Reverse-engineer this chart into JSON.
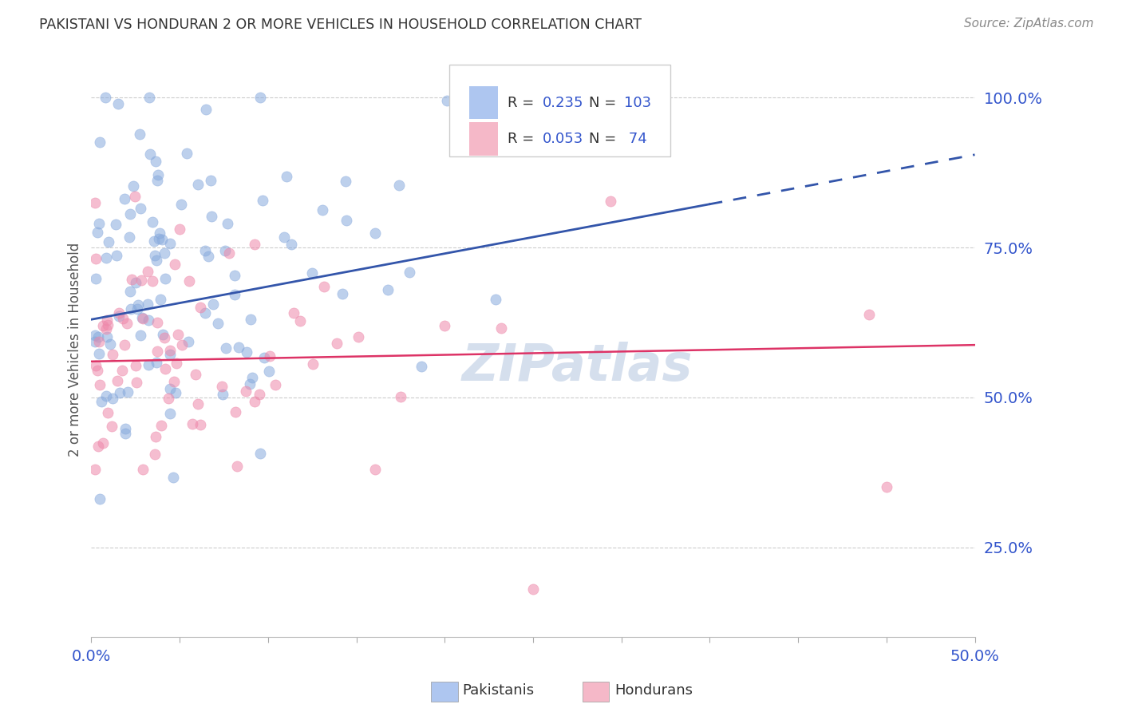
{
  "title": "PAKISTANI VS HONDURAN 2 OR MORE VEHICLES IN HOUSEHOLD CORRELATION CHART",
  "source": "Source: ZipAtlas.com",
  "ylabel": "2 or more Vehicles in Household",
  "xlim": [
    0.0,
    50.0
  ],
  "ylim": [
    10.0,
    106.0
  ],
  "ytick_vals": [
    25,
    50,
    75,
    100
  ],
  "ytick_labels": [
    "25.0%",
    "50.0%",
    "75.0%",
    "100.0%"
  ],
  "pakistani_color": "#88aadd",
  "honduran_color": "#ee88aa",
  "pakistani_trend_color": "#3355aa",
  "honduran_trend_color": "#dd3366",
  "pakistani_R": 0.235,
  "honduran_R": 0.053,
  "pakistani_N": 103,
  "honduran_N": 74,
  "legend_blue_fill": "#aec6f0",
  "legend_pink_fill": "#f5b8c8",
  "legend_number_color": "#3355cc",
  "axis_label_color": "#3355cc",
  "grid_color": "#cccccc",
  "title_color": "#333333",
  "source_color": "#888888",
  "watermark_color": "#c8d5e8",
  "pak_trend_intercept": 63.0,
  "pak_trend_slope": 0.55,
  "hon_trend_intercept": 56.0,
  "hon_trend_slope": 0.055,
  "pak_dash_start_x": 35.0,
  "background_color": "#ffffff"
}
